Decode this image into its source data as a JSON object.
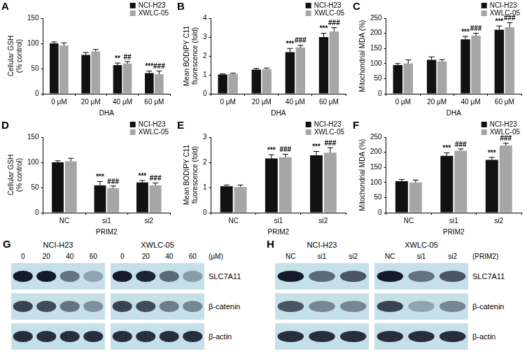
{
  "chart_data": [
    {
      "panel": "A",
      "type": "bar",
      "x_label": "DHA",
      "y_label": [
        "Cellular GSH",
        "(% control)"
      ],
      "categories": [
        "0 μM",
        "20 μM",
        "40 μM",
        "60 μM"
      ],
      "series": [
        {
          "name": "NCI-H23",
          "color": "#111111",
          "values": [
            100,
            77,
            57,
            41
          ],
          "errors": [
            3,
            5,
            4,
            4
          ],
          "significance": [
            "",
            "",
            "**",
            "***"
          ]
        },
        {
          "name": "XWLC-05",
          "color": "#a6a6a6",
          "values": [
            96,
            84,
            60,
            39
          ],
          "errors": [
            5,
            4,
            4,
            6
          ],
          "significance": [
            "",
            "",
            "##",
            "###"
          ]
        }
      ],
      "ylim": [
        0,
        150
      ],
      "yticks": [
        0,
        50,
        100,
        150
      ],
      "grid": false,
      "legend": "upper right"
    },
    {
      "panel": "B",
      "type": "bar",
      "x_label": "DHA",
      "y_label": [
        "Mean BODIPY C11",
        "fluorescence (fold)"
      ],
      "categories": [
        "0 μM",
        "20 μM",
        "40 μM",
        "60 μM"
      ],
      "series": [
        {
          "name": "NCI-H23",
          "color": "#111111",
          "values": [
            1.02,
            1.28,
            2.2,
            3.0
          ],
          "errors": [
            0.03,
            0.06,
            0.2,
            0.2
          ],
          "significance": [
            "",
            "",
            "***",
            "***"
          ]
        },
        {
          "name": "XWLC-05",
          "color": "#a6a6a6",
          "values": [
            1.05,
            1.3,
            2.45,
            3.3
          ],
          "errors": [
            0.04,
            0.06,
            0.12,
            0.2
          ],
          "significance": [
            "",
            "",
            "###",
            "###"
          ]
        }
      ],
      "ylim": [
        0,
        4
      ],
      "yticks": [
        0,
        1,
        2,
        3,
        4
      ],
      "grid": false,
      "legend": "upper right"
    },
    {
      "panel": "C",
      "type": "bar",
      "x_label": "DHA",
      "y_label": [
        "Mitochondrial MDA (%)"
      ],
      "categories": [
        "0 μM",
        "20 μM",
        "40 μM",
        "60 μM"
      ],
      "series": [
        {
          "name": "NCI-H23",
          "color": "#111111",
          "values": [
            95,
            112,
            180,
            212
          ],
          "errors": [
            5,
            10,
            10,
            12
          ],
          "significance": [
            "",
            "",
            "***",
            "***"
          ]
        },
        {
          "name": "XWLC-05",
          "color": "#a6a6a6",
          "values": [
            100,
            107,
            192,
            220
          ],
          "errors": [
            12,
            6,
            8,
            15
          ],
          "significance": [
            "",
            "",
            "###",
            "###"
          ]
        }
      ],
      "ylim": [
        0,
        250
      ],
      "yticks": [
        0,
        50,
        100,
        150,
        200,
        250
      ],
      "grid": false,
      "legend": "upper right"
    },
    {
      "panel": "D",
      "type": "bar",
      "x_label": "PRIM2",
      "y_label": [
        "Cellular GSH",
        "(% control)"
      ],
      "categories": [
        "NC",
        "si1",
        "si2"
      ],
      "series": [
        {
          "name": "NCI-H23",
          "color": "#111111",
          "values": [
            100,
            54,
            60
          ],
          "errors": [
            3,
            8,
            4
          ],
          "significance": [
            "",
            "***",
            "***"
          ]
        },
        {
          "name": "XWLC-05",
          "color": "#a6a6a6",
          "values": [
            102,
            49,
            54
          ],
          "errors": [
            6,
            4,
            5
          ],
          "significance": [
            "",
            "###",
            "###"
          ]
        }
      ],
      "ylim": [
        0,
        150
      ],
      "yticks": [
        0,
        50,
        100,
        150
      ],
      "grid": false,
      "legend": "upper right"
    },
    {
      "panel": "E",
      "type": "bar",
      "x_label": "PRIM2",
      "y_label": [
        "Mean BODIPY C11",
        "fluorescence (fold)"
      ],
      "categories": [
        "NC",
        "si1",
        "si2"
      ],
      "series": [
        {
          "name": "NCI-H23",
          "color": "#111111",
          "values": [
            1.05,
            2.15,
            2.28
          ],
          "errors": [
            0.05,
            0.15,
            0.15
          ],
          "significance": [
            "",
            "***",
            "***"
          ]
        },
        {
          "name": "XWLC-05",
          "color": "#a6a6a6",
          "values": [
            1.02,
            2.2,
            2.38
          ],
          "errors": [
            0.08,
            0.12,
            0.2
          ],
          "significance": [
            "",
            "###",
            "###"
          ]
        }
      ],
      "ylim": [
        0,
        3
      ],
      "yticks": [
        0,
        1,
        2,
        3
      ],
      "grid": false,
      "legend": "upper right"
    },
    {
      "panel": "F",
      "type": "bar",
      "x_label": "PRIM2",
      "y_label": [
        "Mitochondrial MDA (%)"
      ],
      "categories": [
        "NC",
        "si1",
        "si2"
      ],
      "series": [
        {
          "name": "NCI-H23",
          "color": "#111111",
          "values": [
            104,
            188,
            175
          ],
          "errors": [
            6,
            10,
            8
          ],
          "significance": [
            "",
            "***",
            "***"
          ]
        },
        {
          "name": "XWLC-05",
          "color": "#a6a6a6",
          "values": [
            100,
            205,
            222
          ],
          "errors": [
            8,
            6,
            8
          ],
          "significance": [
            "",
            "###",
            "###"
          ]
        }
      ],
      "ylim": [
        0,
        250
      ],
      "yticks": [
        0,
        50,
        100,
        150,
        200,
        250
      ],
      "grid": false,
      "legend": "upper right"
    }
  ],
  "blots": [
    {
      "panel": "G",
      "unit": "(μM)",
      "proteins": [
        "SLC7A11",
        "β-catenin",
        "β-actin"
      ],
      "groups": [
        {
          "name": "NCI-H23",
          "lanes": [
            "0",
            "20",
            "40",
            "60"
          ],
          "band_intensity": [
            [
              1,
              1,
              0.55,
              0.3
            ],
            [
              0.8,
              0.75,
              0.55,
              0.4
            ],
            [
              0.9,
              0.9,
              0.9,
              0.9
            ]
          ]
        },
        {
          "name": "XWLC-05",
          "lanes": [
            "0",
            "20",
            "40",
            "60"
          ],
          "band_intensity": [
            [
              1,
              0.95,
              0.6,
              0.35
            ],
            [
              0.8,
              0.75,
              0.5,
              0.45
            ],
            [
              0.9,
              0.9,
              0.9,
              0.9
            ]
          ]
        }
      ]
    },
    {
      "panel": "H",
      "unit": "(PRIM2)",
      "proteins": [
        "SLC7A11",
        "β-catenin",
        "β-actin"
      ],
      "groups": [
        {
          "name": "NCI-H23",
          "lanes": [
            "NC",
            "si1",
            "si2"
          ],
          "band_intensity": [
            [
              1,
              0.6,
              0.7
            ],
            [
              0.7,
              0.45,
              0.45
            ],
            [
              0.9,
              0.9,
              0.9
            ]
          ]
        },
        {
          "name": "XWLC-05",
          "lanes": [
            "NC",
            "si1",
            "si2"
          ],
          "band_intensity": [
            [
              1,
              0.55,
              0.7
            ],
            [
              0.8,
              0.3,
              0.45
            ],
            [
              0.9,
              0.9,
              0.9
            ]
          ]
        }
      ]
    }
  ]
}
